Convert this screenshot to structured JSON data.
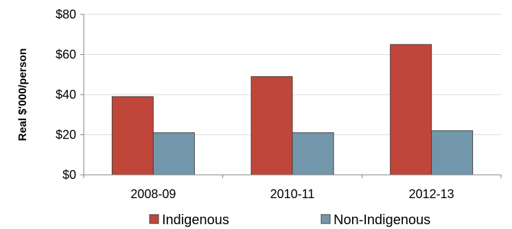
{
  "chart_data": {
    "type": "bar",
    "ylabel": "Real $'000/person",
    "categories": [
      "2008-09",
      "2010-11",
      "2012-13"
    ],
    "series": [
      {
        "name": "Indigenous",
        "values": [
          39,
          49,
          65
        ],
        "color": "#c0463a"
      },
      {
        "name": "Non-Indigenous",
        "values": [
          21,
          21,
          22
        ],
        "color": "#7297aa"
      }
    ],
    "ylim": [
      0,
      80
    ],
    "yticks": [
      0,
      20,
      40,
      60,
      80
    ],
    "ytick_labels": [
      "$0",
      "$20",
      "$40",
      "$60",
      "$80"
    ],
    "grid": true,
    "legend_position": "bottom"
  }
}
